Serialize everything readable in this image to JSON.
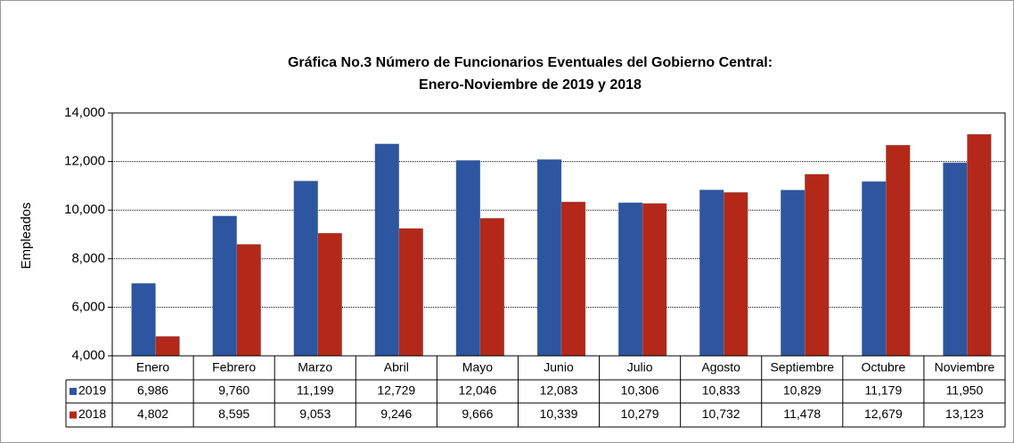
{
  "chart_data": {
    "type": "bar",
    "title": [
      "Gráfica No.3 Número de Funcionarios Eventuales del Gobierno Central:",
      "Enero-Noviembre de 2019 y 2018"
    ],
    "y_label": "Empleados",
    "categories": [
      "Enero",
      "Febrero",
      "Marzo",
      "Abril",
      "Mayo",
      "Junio",
      "Julio",
      "Agosto",
      "Septiembre",
      "Octubre",
      "Noviembre"
    ],
    "series": [
      {
        "name": "2019",
        "color": "#2e55a0",
        "values": [
          6986,
          9760,
          11199,
          12729,
          12046,
          12083,
          10306,
          10833,
          10829,
          11179,
          11950
        ],
        "value_labels": [
          "6,986",
          "9,760",
          "11,199",
          "12,729",
          "12,046",
          "12,083",
          "10,306",
          "10,833",
          "10,829",
          "11,179",
          "11,950"
        ]
      },
      {
        "name": "2018",
        "color": "#b32818",
        "values": [
          4802,
          8595,
          9053,
          9246,
          9666,
          10339,
          10279,
          10732,
          11478,
          12679,
          13123
        ],
        "value_labels": [
          "4,802",
          "8,595",
          "9,053",
          "9,246",
          "9,666",
          "10,339",
          "10,279",
          "10,732",
          "11,478",
          "12,679",
          "13,123"
        ]
      }
    ],
    "ylim": [
      4000,
      14000
    ],
    "yticks": [
      {
        "value": 4000,
        "label": "4,000"
      },
      {
        "value": 6000,
        "label": "6,000"
      },
      {
        "value": 8000,
        "label": "8,000"
      },
      {
        "value": 10000,
        "label": "10,000"
      },
      {
        "value": 12000,
        "label": "12,000"
      },
      {
        "value": 14000,
        "label": "14,000"
      }
    ],
    "grid": true
  }
}
